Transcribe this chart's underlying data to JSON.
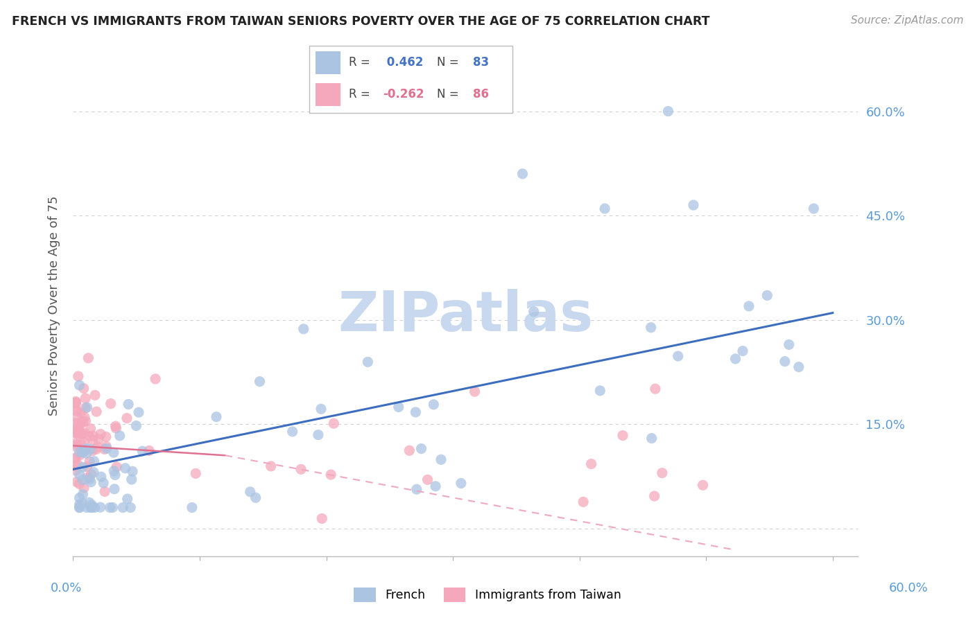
{
  "title": "FRENCH VS IMMIGRANTS FROM TAIWAN SENIORS POVERTY OVER THE AGE OF 75 CORRELATION CHART",
  "source": "Source: ZipAtlas.com",
  "ylabel": "Seniors Poverty Over the Age of 75",
  "xlim": [
    0.0,
    0.62
  ],
  "ylim": [
    -0.04,
    0.68
  ],
  "ytick_vals": [
    0.0,
    0.15,
    0.3,
    0.45,
    0.6
  ],
  "ytick_labels": [
    "",
    "15.0%",
    "30.0%",
    "45.0%",
    "60.0%"
  ],
  "xtick_vals": [
    0.0,
    0.1,
    0.2,
    0.3,
    0.4,
    0.5,
    0.6
  ],
  "french_color": "#aac4e2",
  "taiwan_color": "#f5a8bc",
  "french_line_color": "#3c6dbe",
  "taiwan_line_solid_color": "#e07090",
  "taiwan_line_dash_color": "#f0a8c0",
  "axis_tick_color": "#5b9bd5",
  "grid_color": "#d0d0d0",
  "background_color": "#ffffff",
  "watermark_color": "#c8d8ee",
  "legend_r_french": "0.462",
  "legend_n_french": "83",
  "legend_r_taiwan": "-0.262",
  "legend_n_taiwan": "86"
}
